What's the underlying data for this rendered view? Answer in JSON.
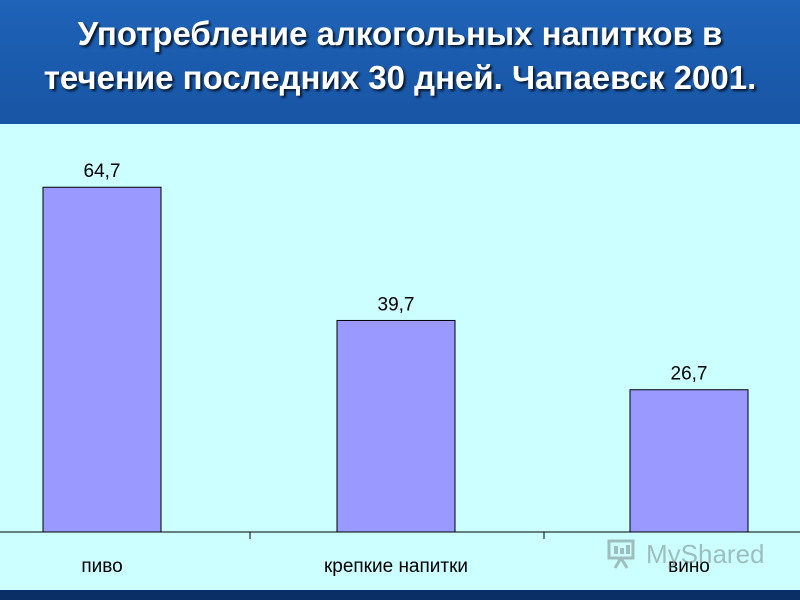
{
  "title": {
    "line1": "Употребление алкогольных напитков в",
    "line2": "течение последних 30 дней. Чапаевск 2001."
  },
  "chart_data": {
    "type": "bar",
    "categories": [
      "пиво",
      "крепкие напитки",
      "вино"
    ],
    "values": [
      64.7,
      39.7,
      26.7
    ],
    "data_labels": [
      "64,7",
      "39,7",
      "26,7"
    ],
    "ylim": [
      0,
      70
    ],
    "grid": false,
    "legend": "none",
    "xlabel": "",
    "ylabel": ""
  },
  "colors": {
    "bar_fill": "#9999ff",
    "bar_stroke": "#000000",
    "plot_background": "#ccffff",
    "title_background": "#1e63b8",
    "title_text": "#ffffff"
  },
  "watermark": {
    "text": "MyShared",
    "icon": "presentation-board-icon"
  }
}
